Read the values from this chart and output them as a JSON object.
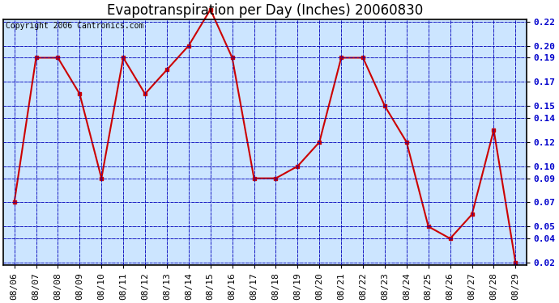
{
  "title": "Evapotranspiration per Day (Inches) 20060830",
  "copyright": "Copyright 2006 Cantronics.com",
  "dates": [
    "08/06",
    "08/07",
    "08/08",
    "08/09",
    "08/10",
    "08/11",
    "08/12",
    "08/13",
    "08/14",
    "08/15",
    "08/16",
    "08/17",
    "08/18",
    "08/19",
    "08/20",
    "08/21",
    "08/22",
    "08/23",
    "08/24",
    "08/25",
    "08/26",
    "08/27",
    "08/28",
    "08/29"
  ],
  "values": [
    0.07,
    0.19,
    0.19,
    0.16,
    0.09,
    0.19,
    0.16,
    0.18,
    0.2,
    0.23,
    0.19,
    0.09,
    0.09,
    0.1,
    0.12,
    0.19,
    0.19,
    0.15,
    0.12,
    0.05,
    0.04,
    0.06,
    0.13,
    0.02
  ],
  "line_color": "#cc0000",
  "marker": "s",
  "marker_size": 3,
  "bg_color": "#cce5ff",
  "grid_color": "#0000bb",
  "ylim_min": 0.02,
  "ylim_max": 0.22,
  "yticks": [
    0.22,
    0.2,
    0.19,
    0.17,
    0.15,
    0.14,
    0.12,
    0.1,
    0.09,
    0.07,
    0.05,
    0.04,
    0.02
  ],
  "title_fontsize": 12,
  "copyright_fontsize": 7,
  "tick_fontsize": 8
}
